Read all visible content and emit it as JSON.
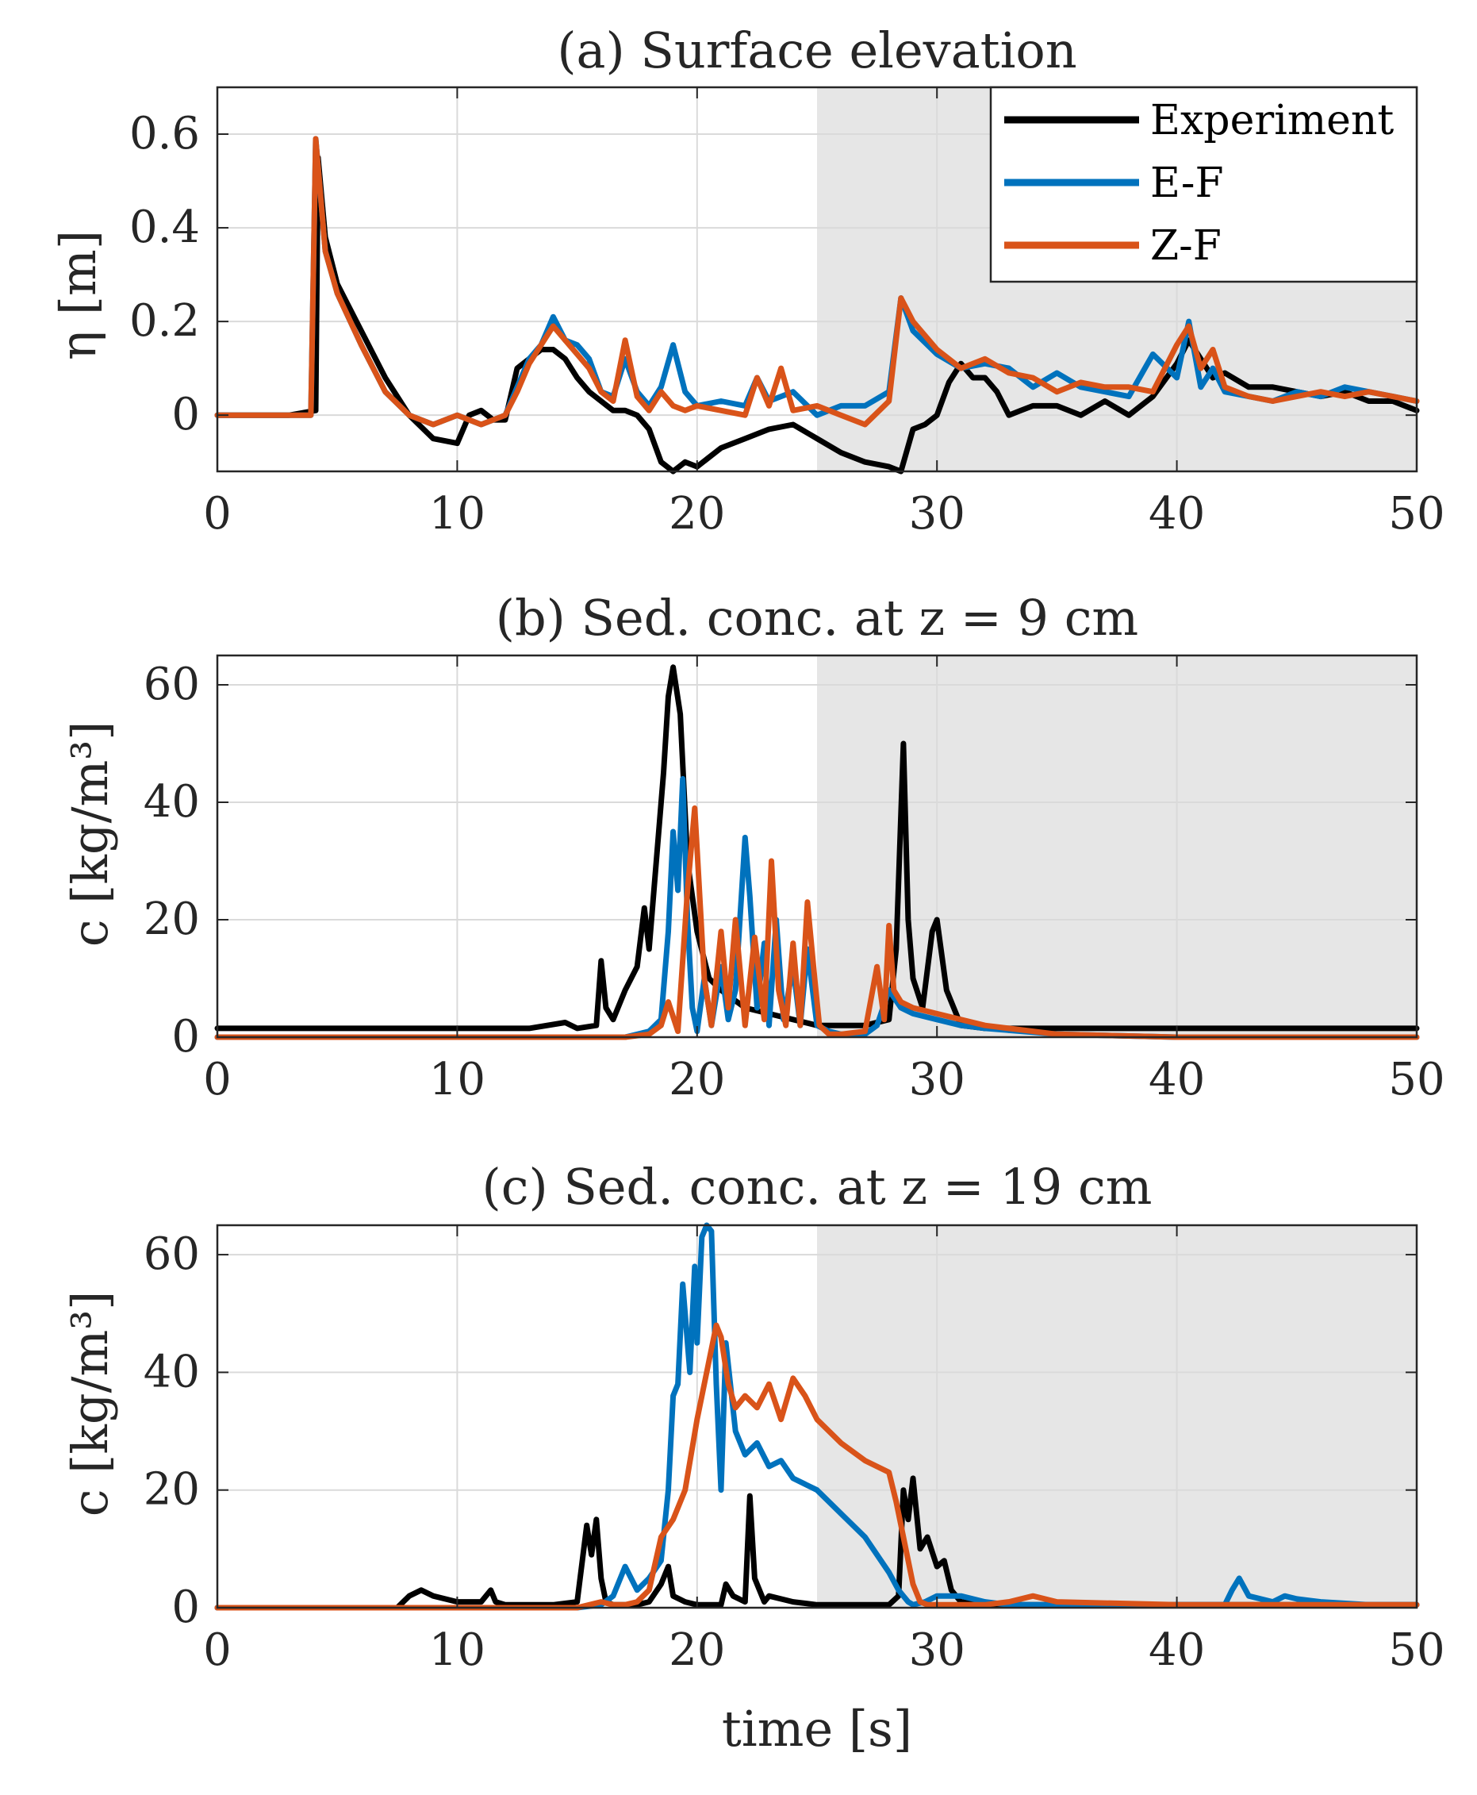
{
  "colors": {
    "experiment": "#000000",
    "ef": "#0072BD",
    "zf": "#D95319",
    "shade": "#E6E6E6",
    "grid": "#DADADA",
    "axis": "#262626"
  },
  "legend": {
    "experiment": "Experiment",
    "ef": "E-F",
    "zf": "Z-F"
  },
  "shared_xlabel": "time [s]",
  "chart_data": [
    {
      "type": "line",
      "title": "(a) Surface elevation",
      "xlabel": "",
      "ylabel": "η [m]",
      "xlim": [
        0,
        50
      ],
      "ylim": [
        -0.12,
        0.7
      ],
      "xticks": [
        0,
        10,
        20,
        30,
        40,
        50
      ],
      "xtick_labels": [
        "0",
        "10",
        "20",
        "30",
        "40",
        "50"
      ],
      "yticks": [
        0,
        0.2,
        0.4,
        0.6
      ],
      "ytick_labels": [
        "0",
        "0.2",
        "0.4",
        "0.6"
      ],
      "shaded_region": [
        25,
        50
      ],
      "grid": true,
      "legend_position": "top-right",
      "series": [
        {
          "name": "Experiment",
          "key": "experiment",
          "x": [
            0,
            3,
            4.1,
            4.2,
            4.5,
            5,
            6,
            7,
            8,
            9,
            10,
            10.5,
            11,
            11.5,
            12,
            12.5,
            13,
            13.5,
            14,
            14.5,
            15,
            15.5,
            16,
            16.5,
            17,
            17.5,
            18,
            18.5,
            19,
            19.5,
            20,
            21,
            22,
            23,
            24,
            25,
            26,
            27,
            28,
            28.5,
            29,
            29.5,
            30,
            30.5,
            31,
            31.5,
            32,
            32.5,
            33,
            33.5,
            34,
            35,
            36,
            37,
            38,
            39,
            40,
            40.5,
            41,
            41.5,
            42,
            43,
            44,
            45,
            46,
            47,
            48,
            49,
            50
          ],
          "y": [
            0,
            0,
            0.01,
            0.55,
            0.38,
            0.28,
            0.18,
            0.08,
            0.0,
            -0.05,
            -0.06,
            0.0,
            0.01,
            -0.01,
            -0.01,
            0.1,
            0.12,
            0.14,
            0.14,
            0.12,
            0.08,
            0.05,
            0.03,
            0.01,
            0.01,
            0.0,
            -0.03,
            -0.1,
            -0.12,
            -0.1,
            -0.11,
            -0.07,
            -0.05,
            -0.03,
            -0.02,
            -0.05,
            -0.08,
            -0.1,
            -0.11,
            -0.12,
            -0.03,
            -0.02,
            0.0,
            0.07,
            0.11,
            0.08,
            0.08,
            0.05,
            0.0,
            0.01,
            0.02,
            0.02,
            0.0,
            0.03,
            0.0,
            0.04,
            0.11,
            0.16,
            0.12,
            0.08,
            0.09,
            0.06,
            0.06,
            0.05,
            0.04,
            0.05,
            0.03,
            0.03,
            0.01
          ]
        },
        {
          "name": "E-F",
          "key": "ef",
          "x": [
            0,
            3.9,
            4.1,
            4.5,
            5,
            6,
            7,
            8,
            9,
            10,
            11,
            12,
            12.5,
            13,
            13.5,
            14,
            14.5,
            15,
            15.5,
            16,
            16.5,
            17,
            17.5,
            18,
            18.5,
            19,
            19.5,
            20,
            21,
            22,
            22.5,
            23,
            24,
            25,
            26,
            27,
            28,
            28.5,
            29,
            30,
            31,
            32,
            33,
            34,
            35,
            36,
            37,
            38,
            39,
            40,
            40.5,
            41,
            41.5,
            42,
            43,
            44,
            45,
            46,
            47,
            48,
            49,
            50
          ],
          "y": [
            0,
            0,
            0.59,
            0.35,
            0.26,
            0.15,
            0.05,
            0.0,
            -0.02,
            0.0,
            -0.02,
            0.0,
            0.06,
            0.12,
            0.15,
            0.21,
            0.16,
            0.15,
            0.12,
            0.05,
            0.04,
            0.12,
            0.05,
            0.02,
            0.06,
            0.15,
            0.05,
            0.02,
            0.03,
            0.02,
            0.08,
            0.03,
            0.05,
            0.0,
            0.02,
            0.02,
            0.05,
            0.25,
            0.18,
            0.13,
            0.1,
            0.11,
            0.1,
            0.06,
            0.09,
            0.06,
            0.05,
            0.04,
            0.13,
            0.08,
            0.2,
            0.06,
            0.1,
            0.05,
            0.04,
            0.03,
            0.05,
            0.04,
            0.06,
            0.05,
            0.04,
            0.03
          ]
        },
        {
          "name": "Z-F",
          "key": "zf",
          "x": [
            0,
            3.9,
            4.1,
            4.5,
            5,
            6,
            7,
            8,
            9,
            10,
            11,
            12,
            12.5,
            13,
            13.5,
            14,
            14.5,
            15,
            15.5,
            16,
            16.5,
            17,
            17.5,
            18,
            18.5,
            19,
            19.5,
            20,
            21,
            22,
            22.5,
            23,
            23.5,
            24,
            25,
            26,
            27,
            28,
            28.5,
            29,
            30,
            31,
            32,
            33,
            34,
            35,
            36,
            37,
            38,
            39,
            40,
            40.5,
            41,
            41.5,
            42,
            43,
            44,
            45,
            46,
            47,
            48,
            49,
            50
          ],
          "y": [
            0,
            0,
            0.59,
            0.35,
            0.26,
            0.15,
            0.05,
            0.0,
            -0.02,
            0.0,
            -0.02,
            0.0,
            0.05,
            0.11,
            0.15,
            0.19,
            0.16,
            0.13,
            0.1,
            0.05,
            0.03,
            0.16,
            0.04,
            0.01,
            0.05,
            0.02,
            0.01,
            0.02,
            0.01,
            0.0,
            0.08,
            0.02,
            0.1,
            0.01,
            0.02,
            0.0,
            -0.02,
            0.03,
            0.25,
            0.2,
            0.14,
            0.1,
            0.12,
            0.09,
            0.08,
            0.05,
            0.07,
            0.06,
            0.06,
            0.05,
            0.15,
            0.19,
            0.1,
            0.14,
            0.06,
            0.04,
            0.03,
            0.04,
            0.05,
            0.04,
            0.05,
            0.04,
            0.03
          ]
        }
      ]
    },
    {
      "type": "line",
      "title": "(b) Sed. conc. at z = 9 cm",
      "xlabel": "",
      "ylabel": "c [kg/m³]",
      "xlim": [
        0,
        50
      ],
      "ylim": [
        0,
        65
      ],
      "xticks": [
        0,
        10,
        20,
        30,
        40,
        50
      ],
      "xtick_labels": [
        "0",
        "10",
        "20",
        "30",
        "40",
        "50"
      ],
      "yticks": [
        0,
        20,
        40,
        60
      ],
      "ytick_labels": [
        "0",
        "20",
        "40",
        "60"
      ],
      "shaded_region": [
        25,
        50
      ],
      "grid": true,
      "series": [
        {
          "name": "Experiment",
          "key": "experiment",
          "x": [
            0,
            13,
            14.5,
            15,
            15.8,
            16,
            16.2,
            16.5,
            17,
            17.5,
            17.8,
            18,
            18.3,
            18.6,
            18.8,
            19,
            19.3,
            19.6,
            20,
            20.5,
            21,
            22,
            23,
            24,
            25,
            26,
            27,
            28,
            28.3,
            28.6,
            28.8,
            29,
            29.4,
            29.8,
            30,
            30.4,
            31,
            32,
            34,
            36,
            40,
            50
          ],
          "y": [
            1.5,
            1.5,
            2.5,
            1.5,
            2,
            13,
            5,
            3,
            8,
            12,
            22,
            15,
            30,
            45,
            58,
            63,
            55,
            30,
            18,
            10,
            8,
            5,
            4,
            3,
            2,
            2,
            2,
            3,
            15,
            50,
            20,
            10,
            5,
            18,
            20,
            8,
            2,
            1.5,
            1.5,
            1.5,
            1.5,
            1.5
          ]
        },
        {
          "name": "E-F",
          "key": "ef",
          "x": [
            0,
            17,
            18,
            18.5,
            18.8,
            19,
            19.2,
            19.4,
            19.6,
            19.8,
            20,
            20.3,
            20.6,
            21,
            21.3,
            21.6,
            22,
            22.2,
            22.5,
            22.8,
            23,
            23.3,
            23.6,
            24,
            24.3,
            24.6,
            25,
            25.5,
            26,
            27,
            27.5,
            28,
            28.5,
            29,
            30,
            31,
            32,
            35,
            40,
            50
          ],
          "y": [
            0,
            0,
            1,
            3,
            18,
            35,
            25,
            44,
            20,
            5,
            1,
            10,
            2,
            12,
            3,
            8,
            34,
            24,
            5,
            16,
            2,
            20,
            3,
            12,
            2,
            15,
            2,
            1,
            0.5,
            0.5,
            2,
            8,
            5,
            4,
            3,
            2,
            1.5,
            0.5,
            0,
            0
          ]
        },
        {
          "name": "Z-F",
          "key": "zf",
          "x": [
            0,
            17,
            18,
            18.5,
            18.8,
            19.2,
            19.6,
            19.9,
            20,
            20.3,
            20.6,
            21,
            21.3,
            21.6,
            22,
            22.4,
            22.8,
            23.1,
            23.4,
            23.7,
            24,
            24.3,
            24.6,
            24.9,
            25.1,
            25.5,
            26,
            27,
            27.5,
            27.8,
            28,
            28.2,
            28.5,
            29,
            30,
            31,
            32,
            33,
            35,
            40,
            50
          ],
          "y": [
            0,
            0,
            0.5,
            2,
            6,
            1,
            25,
            39,
            32,
            10,
            2,
            18,
            5,
            20,
            2,
            17,
            3,
            30,
            8,
            2,
            16,
            2,
            23,
            10,
            2,
            0.5,
            0.5,
            1,
            12,
            3,
            19,
            8,
            6,
            5,
            4,
            3,
            2,
            1.5,
            0.5,
            0,
            0
          ]
        }
      ]
    },
    {
      "type": "line",
      "title": "(c) Sed. conc. at z = 19 cm",
      "xlabel": "time [s]",
      "ylabel": "c [kg/m³]",
      "xlim": [
        0,
        50
      ],
      "ylim": [
        0,
        65
      ],
      "xticks": [
        0,
        10,
        20,
        30,
        40,
        50
      ],
      "xtick_labels": [
        "0",
        "10",
        "20",
        "30",
        "40",
        "50"
      ],
      "yticks": [
        0,
        20,
        40,
        60
      ],
      "ytick_labels": [
        "0",
        "20",
        "40",
        "60"
      ],
      "shaded_region": [
        25,
        50
      ],
      "grid": true,
      "series": [
        {
          "name": "Experiment",
          "key": "experiment",
          "x": [
            0,
            7.5,
            8,
            8.5,
            9,
            10,
            11,
            11.4,
            11.6,
            12,
            14,
            15,
            15.4,
            15.6,
            15.8,
            16,
            16.2,
            16.5,
            17,
            17.5,
            18,
            18.5,
            18.8,
            19,
            19.5,
            20,
            21,
            21.2,
            21.5,
            22,
            22.2,
            22.4,
            22.8,
            23,
            24,
            25,
            26,
            27,
            28,
            28.4,
            28.6,
            28.8,
            29,
            29.3,
            29.6,
            30,
            30.3,
            30.6,
            31,
            32,
            35,
            40,
            45,
            50
          ],
          "y": [
            0,
            0,
            2,
            3,
            2,
            1,
            1,
            3,
            1,
            0.5,
            0.5,
            1,
            14,
            9,
            15,
            5,
            1,
            0.5,
            0.5,
            0.5,
            1,
            4,
            7,
            2,
            1,
            0.5,
            0.5,
            4,
            2,
            1,
            19,
            5,
            1,
            2,
            1,
            0.5,
            0.5,
            0.5,
            0.5,
            2,
            20,
            15,
            22,
            10,
            12,
            7,
            8,
            3,
            1,
            0.5,
            0.5,
            0.5,
            0.5,
            0.5
          ]
        },
        {
          "name": "E-F",
          "key": "ef",
          "x": [
            0,
            15,
            16,
            16.5,
            17,
            17.5,
            18,
            18.5,
            18.8,
            19,
            19.2,
            19.4,
            19.7,
            19.9,
            20,
            20.2,
            20.4,
            20.6,
            20.8,
            21,
            21.2,
            21.6,
            22,
            22.5,
            23,
            23.5,
            24,
            25,
            26,
            27,
            28,
            28.4,
            28.8,
            29,
            29.5,
            30,
            31,
            32,
            33,
            35,
            40,
            42,
            42.3,
            42.6,
            43,
            44,
            44.5,
            45,
            46,
            48,
            50
          ],
          "y": [
            0,
            0,
            0.5,
            2,
            7,
            3,
            5,
            8,
            20,
            36,
            38,
            55,
            40,
            58,
            45,
            63,
            65,
            64,
            38,
            20,
            45,
            30,
            26,
            28,
            24,
            25,
            22,
            20,
            16,
            12,
            6,
            3,
            1,
            0.5,
            1,
            2,
            2,
            1,
            0.5,
            0.5,
            0.5,
            0.5,
            3,
            5,
            2,
            1,
            2,
            1.5,
            1,
            0.5,
            0.5
          ]
        },
        {
          "name": "Z-F",
          "key": "zf",
          "x": [
            0,
            15,
            16,
            16.5,
            17,
            17.5,
            18,
            18.5,
            19,
            19.5,
            20,
            20.5,
            20.8,
            21,
            21.3,
            21.6,
            22,
            22.5,
            23,
            23.5,
            24,
            24.5,
            25,
            26,
            27,
            28,
            28.3,
            28.6,
            29,
            29.3,
            29.6,
            30,
            31,
            32,
            33,
            34,
            35,
            40,
            50
          ],
          "y": [
            0,
            0,
            1,
            0.5,
            0.5,
            1,
            3,
            12,
            15,
            20,
            32,
            42,
            48,
            46,
            38,
            34,
            36,
            34,
            38,
            32,
            39,
            36,
            32,
            28,
            25,
            23,
            18,
            12,
            4,
            1,
            0.5,
            0.5,
            0.5,
            0.5,
            1,
            2,
            1,
            0.5,
            0.5
          ]
        }
      ]
    }
  ]
}
